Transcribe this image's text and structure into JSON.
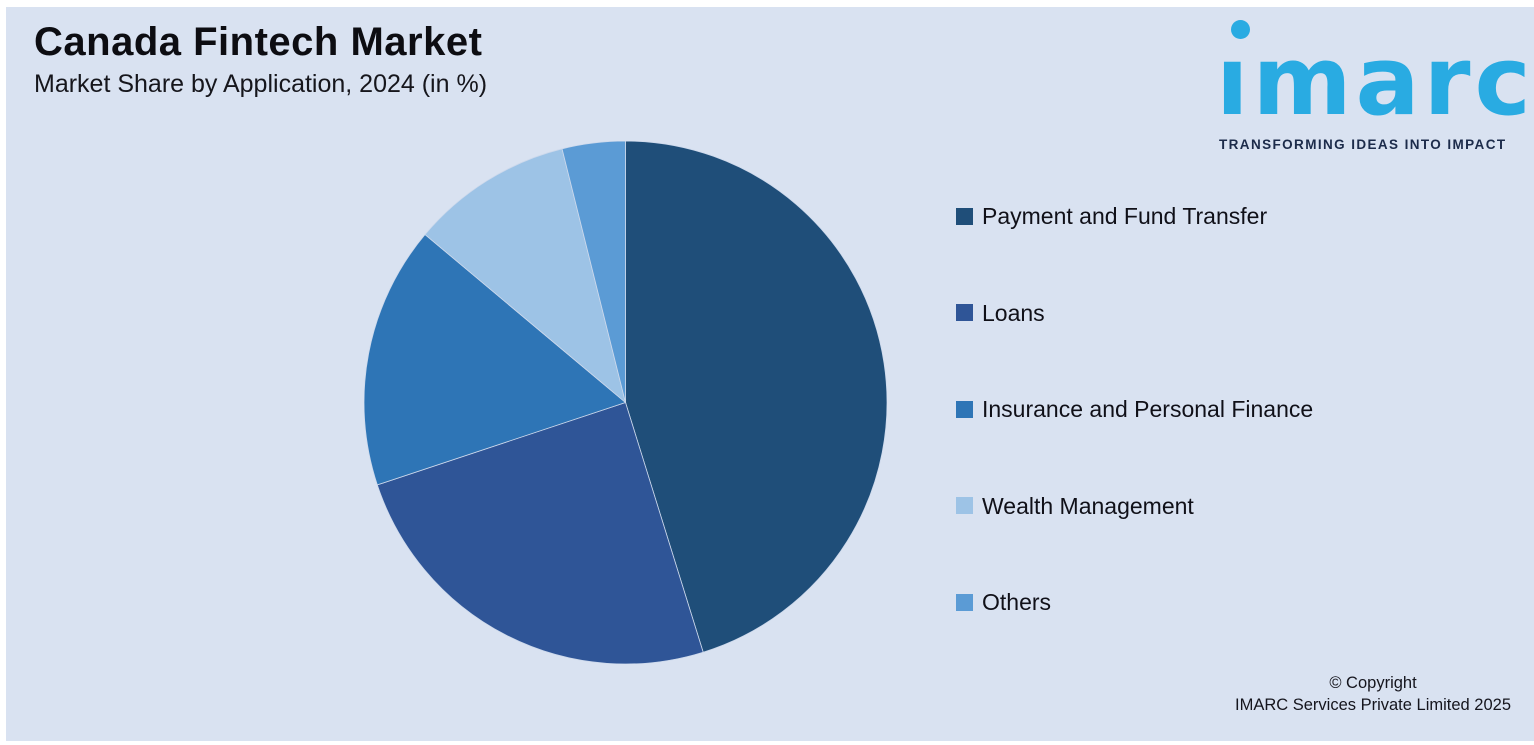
{
  "header": {
    "title": "Canada Fintech Market",
    "subtitle": "Market Share by Application, 2024 (in %)"
  },
  "logo": {
    "brand": "imarc",
    "brand_display_dotless": "ımarc",
    "tagline": "TRANSFORMING IDEAS INTO IMPACT",
    "brand_color": "#29ABE2",
    "tagline_color": "#1C2B4A"
  },
  "chart_data": {
    "type": "pie",
    "title": "Market Share by Application, 2024 (in %)",
    "labels": [
      "Payment and Fund Transfer",
      "Loans",
      "Insurance and Personal Finance",
      "Wealth Management",
      "Others"
    ],
    "values": [
      45.2,
      24.7,
      16.2,
      10.0,
      3.9
    ],
    "colors": [
      "#1F4E79",
      "#2F5597",
      "#2E75B6",
      "#9DC3E6",
      "#5B9BD5"
    ],
    "unit": "%",
    "start_angle_deg": -90,
    "direction": "clockwise",
    "legend_position": "right",
    "data_labels_shown": false
  },
  "legend": {
    "items": [
      {
        "label": "Payment and Fund Transfer",
        "color": "#1F4E79"
      },
      {
        "label": "Loans",
        "color": "#2F5597"
      },
      {
        "label": "Insurance and Personal Finance",
        "color": "#2E75B6"
      },
      {
        "label": "Wealth Management",
        "color": "#9DC3E6"
      },
      {
        "label": "Others",
        "color": "#5B9BD5"
      }
    ]
  },
  "footer": {
    "line1": "© Copyright",
    "line2": "IMARC Services Private Limited 2025"
  },
  "colors": {
    "panel_background": "#D9E2F1",
    "frame": "#FFFFFF",
    "slice_separator": "#CDD9EC"
  }
}
